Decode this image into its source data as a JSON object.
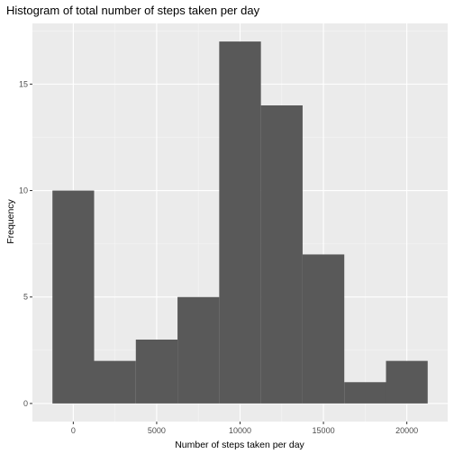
{
  "chart_data": {
    "type": "bar",
    "title": "Histogram of total number of steps taken per day",
    "xlabel": "Number of steps taken per day",
    "ylabel": "Frequency",
    "bins": [
      {
        "start": -1250,
        "end": 1250,
        "count": 10
      },
      {
        "start": 1250,
        "end": 3750,
        "count": 2
      },
      {
        "start": 3750,
        "end": 6250,
        "count": 3
      },
      {
        "start": 6250,
        "end": 8750,
        "count": 5
      },
      {
        "start": 8750,
        "end": 11250,
        "count": 17
      },
      {
        "start": 11250,
        "end": 13750,
        "count": 14
      },
      {
        "start": 13750,
        "end": 16250,
        "count": 7
      },
      {
        "start": 16250,
        "end": 18750,
        "count": 1
      },
      {
        "start": 18750,
        "end": 21250,
        "count": 2
      }
    ],
    "xlim": [
      -2450,
      22450
    ],
    "ylim": [
      -0.85,
      17.85
    ],
    "x_ticks": [
      0,
      5000,
      10000,
      15000,
      20000
    ],
    "x_tick_labels": [
      "0",
      "5000",
      "10000",
      "15000",
      "20000"
    ],
    "y_ticks": [
      0,
      5,
      10,
      15
    ],
    "y_tick_labels": [
      "0",
      "5",
      "10",
      "15"
    ],
    "grid": true,
    "colors": {
      "panel_background": "#ebebeb",
      "grid_major": "#ffffff",
      "grid_minor": "#f5f5f5",
      "bar_fill": "#595959",
      "tick_color": "#333333"
    }
  }
}
